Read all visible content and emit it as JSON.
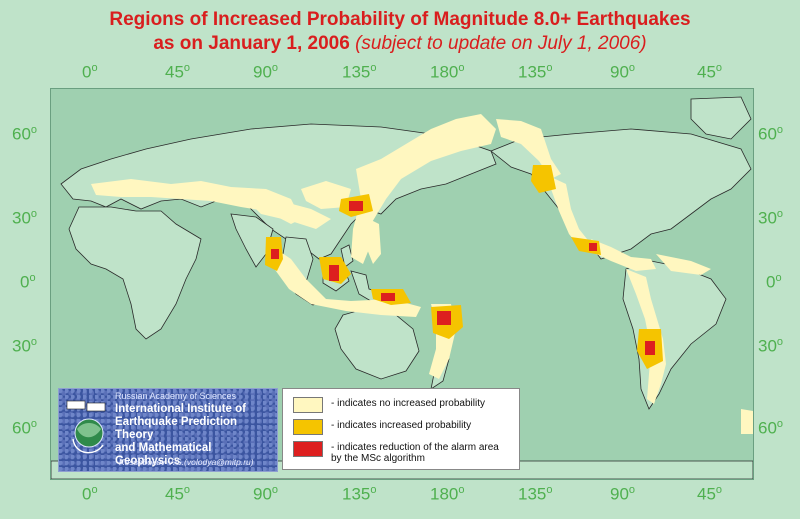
{
  "title": {
    "line1": "Regions of Increased Probability of Magnitude 8.0+ Earthquakes",
    "line2_main": "as on January 1, 2006 ",
    "line2_sub": "(subject to update on July 1, 2006)"
  },
  "longitude_labels": [
    "0",
    "45",
    "90",
    "135",
    "180",
    "135",
    "90",
    "45"
  ],
  "latitude_labels": [
    "60",
    "30",
    "0",
    "30",
    "60"
  ],
  "degree_mark": "o",
  "institute": {
    "academy": "Russian Academy of Sciences",
    "name_line1": "International Institute of",
    "name_line2": "Earthquake Prediction Theory",
    "name_line3": "and Mathematical Geophysics",
    "author": "Kossobokov V.G.(volodya@mitp.ru)"
  },
  "legend": [
    {
      "label": "- indicates no increased probability",
      "color": "#fff7c0"
    },
    {
      "label": "- indicates increased probability",
      "color": "#f5c400"
    },
    {
      "label": "- indicates reduction of the alarm area by the MSc algorithm",
      "color": "#dd1f1f"
    }
  ],
  "colors": {
    "ocean": "#9fd0b0",
    "land": "#bfe3c9",
    "no_increase": "#fff7c0",
    "increased": "#f5c400",
    "reduction": "#dd1f1f",
    "title": "#d91e1e",
    "grid_label": "#4fb04f"
  }
}
